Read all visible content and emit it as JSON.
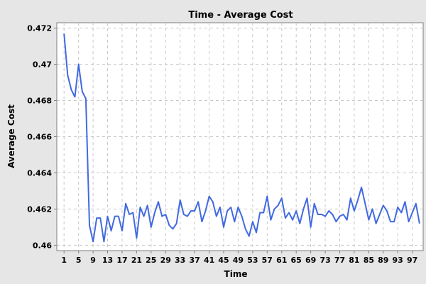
{
  "chart_data": {
    "type": "line",
    "title": "Time - Average Cost",
    "xlabel": "Time",
    "ylabel": "Average Cost",
    "xlim": [
      -1,
      100
    ],
    "ylim": [
      0.4597,
      0.4723
    ],
    "grid": true,
    "legend": "none",
    "colors": {
      "line": "#4169e1",
      "plot_background": "#ffffff",
      "page_background": "#e6e6e6",
      "grid": "#c8c8c8"
    },
    "x_ticks": [
      1,
      5,
      9,
      13,
      17,
      21,
      25,
      29,
      33,
      37,
      41,
      45,
      49,
      53,
      57,
      61,
      65,
      69,
      73,
      77,
      81,
      85,
      89,
      93,
      97
    ],
    "y_ticks": [
      0.46,
      0.462,
      0.464,
      0.466,
      0.468,
      0.47,
      0.472
    ],
    "y_tick_labels": [
      "0.46",
      "0.462",
      "0.464",
      "0.466",
      "0.468",
      "0.47",
      "0.472"
    ],
    "series": [
      {
        "x": [
          1,
          2,
          3,
          4,
          5,
          6,
          7,
          8,
          9,
          10,
          11,
          12,
          13,
          14,
          15,
          16,
          17,
          18,
          19,
          20,
          21,
          22,
          23,
          24,
          25,
          26,
          27,
          28,
          29,
          30,
          31,
          32,
          33,
          34,
          35,
          36,
          37,
          38,
          39,
          40,
          41,
          42,
          43,
          44,
          45,
          46,
          47,
          48,
          49,
          50,
          51,
          52,
          53,
          54,
          55,
          56,
          57,
          58,
          59,
          60,
          61,
          62,
          63,
          64,
          65,
          66,
          67,
          68,
          69,
          70,
          71,
          72,
          73,
          74,
          75,
          76,
          77,
          78,
          79,
          80,
          81,
          82,
          83,
          84,
          85,
          86,
          87,
          88,
          89,
          90,
          91,
          92,
          93,
          94,
          95,
          96,
          97,
          98,
          99
        ],
        "values": [
          0.4717,
          0.4694,
          0.4686,
          0.4682,
          0.47,
          0.4685,
          0.4681,
          0.4611,
          0.4602,
          0.4615,
          0.4615,
          0.4602,
          0.4616,
          0.4608,
          0.4616,
          0.4616,
          0.4608,
          0.4623,
          0.4617,
          0.4618,
          0.4604,
          0.4621,
          0.4616,
          0.4622,
          0.461,
          0.4618,
          0.4624,
          0.4616,
          0.4617,
          0.4611,
          0.4609,
          0.4612,
          0.4625,
          0.4617,
          0.4616,
          0.4619,
          0.4619,
          0.4624,
          0.4613,
          0.4619,
          0.4627,
          0.4624,
          0.4616,
          0.4621,
          0.461,
          0.4619,
          0.4621,
          0.4613,
          0.4621,
          0.4616,
          0.4609,
          0.4605,
          0.4613,
          0.4607,
          0.4618,
          0.4618,
          0.4627,
          0.4614,
          0.462,
          0.4622,
          0.4626,
          0.4615,
          0.4618,
          0.4614,
          0.4619,
          0.4612,
          0.462,
          0.4626,
          0.461,
          0.4623,
          0.4617,
          0.4617,
          0.4616,
          0.4619,
          0.4617,
          0.4613,
          0.4616,
          0.4617,
          0.4614,
          0.4626,
          0.4619,
          0.4625,
          0.4632,
          0.4623,
          0.4614,
          0.462,
          0.4612,
          0.4617,
          0.4622,
          0.4619,
          0.4613,
          0.4613,
          0.4621,
          0.4618,
          0.4624,
          0.4613,
          0.4618,
          0.4623,
          0.4612
        ]
      }
    ]
  }
}
